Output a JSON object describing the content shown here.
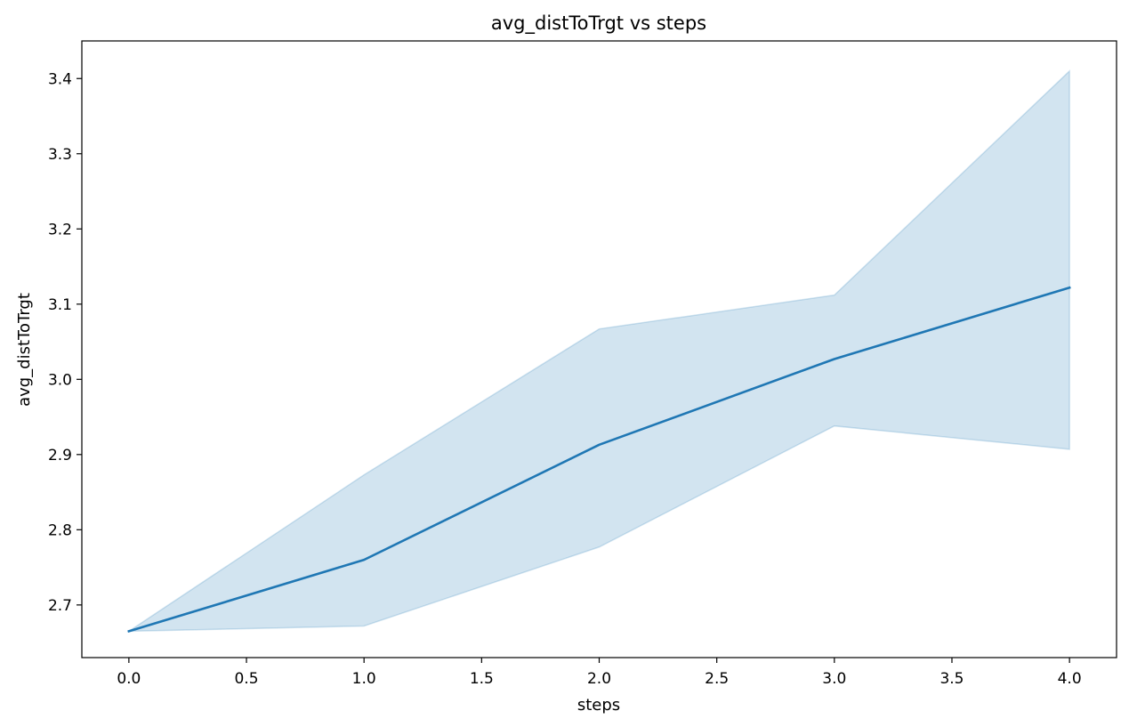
{
  "chart_data": {
    "type": "line",
    "title": "avg_distToTrgt vs steps",
    "xlabel": "steps",
    "ylabel": "avg_distToTrgt",
    "xlim": [
      -0.2,
      4.2
    ],
    "ylim": [
      2.63,
      3.45
    ],
    "xticks": [
      "0.0",
      "0.5",
      "1.0",
      "1.5",
      "2.0",
      "2.5",
      "3.0",
      "3.5",
      "4.0"
    ],
    "yticks": [
      "2.7",
      "2.8",
      "2.9",
      "3.0",
      "3.1",
      "3.2",
      "3.3",
      "3.4"
    ],
    "grid": false,
    "series": [
      {
        "x": [
          0,
          1,
          2,
          3,
          4
        ],
        "values": [
          2.665,
          2.76,
          2.913,
          3.027,
          3.122
        ],
        "ci_lower": [
          2.665,
          2.672,
          2.777,
          2.938,
          2.907
        ],
        "ci_upper": [
          2.665,
          2.873,
          3.067,
          3.112,
          3.41
        ],
        "color": "#1f77b4",
        "band_color": "#1f77b4"
      }
    ]
  }
}
